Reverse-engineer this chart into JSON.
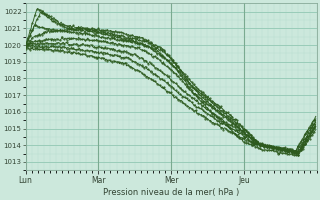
{
  "xlabel": "Pression niveau de la mer( hPa )",
  "bg_color": "#cce8dc",
  "plot_bg_color": "#cce8dc",
  "grid_major_color": "#99ccb8",
  "grid_minor_color": "#b8ddd0",
  "line_color": "#2d5a1e",
  "ylim": [
    1012.5,
    1022.5
  ],
  "yticks": [
    1013,
    1014,
    1015,
    1016,
    1017,
    1018,
    1019,
    1020,
    1021,
    1022
  ],
  "day_labels": [
    "Lun",
    "Mar",
    "Mer",
    "Jeu"
  ],
  "day_positions": [
    0,
    96,
    192,
    288
  ],
  "total_points": 384,
  "series": [
    {
      "points": [
        [
          0,
          1020.0
        ],
        [
          15,
          1022.2
        ],
        [
          30,
          1021.8
        ],
        [
          50,
          1021.2
        ],
        [
          80,
          1021.0
        ],
        [
          120,
          1020.8
        ],
        [
          150,
          1020.5
        ],
        [
          180,
          1019.8
        ],
        [
          200,
          1018.8
        ],
        [
          220,
          1017.5
        ],
        [
          240,
          1016.8
        ],
        [
          260,
          1016.0
        ],
        [
          288,
          1015.0
        ],
        [
          310,
          1014.0
        ],
        [
          340,
          1013.8
        ],
        [
          360,
          1013.6
        ],
        [
          384,
          1015.5
        ]
      ]
    },
    {
      "points": [
        [
          0,
          1020.0
        ],
        [
          20,
          1022.0
        ],
        [
          35,
          1021.5
        ],
        [
          55,
          1021.0
        ],
        [
          90,
          1020.8
        ],
        [
          130,
          1020.4
        ],
        [
          160,
          1020.0
        ],
        [
          190,
          1019.0
        ],
        [
          210,
          1018.0
        ],
        [
          230,
          1017.0
        ],
        [
          250,
          1016.2
        ],
        [
          270,
          1015.5
        ],
        [
          288,
          1014.8
        ],
        [
          310,
          1014.0
        ],
        [
          340,
          1013.7
        ],
        [
          360,
          1013.5
        ],
        [
          384,
          1015.2
        ]
      ]
    },
    {
      "points": [
        [
          0,
          1020.0
        ],
        [
          12,
          1021.2
        ],
        [
          25,
          1021.0
        ],
        [
          60,
          1020.8
        ],
        [
          100,
          1020.5
        ],
        [
          140,
          1020.2
        ],
        [
          170,
          1019.8
        ],
        [
          200,
          1018.5
        ],
        [
          220,
          1017.2
        ],
        [
          245,
          1016.0
        ],
        [
          270,
          1015.0
        ],
        [
          288,
          1014.2
        ],
        [
          310,
          1013.8
        ],
        [
          340,
          1013.5
        ],
        [
          360,
          1013.4
        ],
        [
          384,
          1015.0
        ]
      ]
    },
    {
      "points": [
        [
          0,
          1020.0
        ],
        [
          10,
          1020.5
        ],
        [
          30,
          1020.8
        ],
        [
          70,
          1021.0
        ],
        [
          100,
          1020.8
        ],
        [
          130,
          1020.5
        ],
        [
          160,
          1020.2
        ],
        [
          185,
          1019.5
        ],
        [
          205,
          1018.5
        ],
        [
          225,
          1017.5
        ],
        [
          250,
          1016.5
        ],
        [
          270,
          1015.8
        ],
        [
          288,
          1015.0
        ],
        [
          310,
          1014.0
        ],
        [
          340,
          1013.8
        ],
        [
          360,
          1013.6
        ],
        [
          384,
          1015.3
        ]
      ]
    },
    {
      "points": [
        [
          0,
          1020.0
        ],
        [
          8,
          1020.2
        ],
        [
          25,
          1020.3
        ],
        [
          60,
          1020.4
        ],
        [
          90,
          1020.3
        ],
        [
          120,
          1020.1
        ],
        [
          150,
          1019.8
        ],
        [
          175,
          1019.2
        ],
        [
          200,
          1018.2
        ],
        [
          220,
          1017.2
        ],
        [
          245,
          1016.3
        ],
        [
          268,
          1015.5
        ],
        [
          288,
          1014.8
        ],
        [
          310,
          1014.0
        ],
        [
          340,
          1013.8
        ],
        [
          360,
          1013.5
        ],
        [
          384,
          1015.2
        ]
      ]
    },
    {
      "points": [
        [
          0,
          1020.0
        ],
        [
          6,
          1020.1
        ],
        [
          20,
          1020.1
        ],
        [
          50,
          1020.1
        ],
        [
          80,
          1020.0
        ],
        [
          110,
          1019.8
        ],
        [
          140,
          1019.5
        ],
        [
          165,
          1018.9
        ],
        [
          190,
          1018.0
        ],
        [
          210,
          1017.2
        ],
        [
          235,
          1016.3
        ],
        [
          260,
          1015.5
        ],
        [
          285,
          1014.8
        ],
        [
          305,
          1014.1
        ],
        [
          335,
          1013.8
        ],
        [
          358,
          1013.6
        ],
        [
          384,
          1015.5
        ]
      ]
    },
    {
      "points": [
        [
          0,
          1019.9
        ],
        [
          4,
          1020.0
        ],
        [
          15,
          1019.9
        ],
        [
          45,
          1019.9
        ],
        [
          75,
          1019.7
        ],
        [
          105,
          1019.5
        ],
        [
          135,
          1019.2
        ],
        [
          160,
          1018.6
        ],
        [
          185,
          1017.8
        ],
        [
          205,
          1017.0
        ],
        [
          230,
          1016.2
        ],
        [
          255,
          1015.4
        ],
        [
          280,
          1014.8
        ],
        [
          302,
          1014.1
        ],
        [
          332,
          1013.8
        ],
        [
          356,
          1013.6
        ],
        [
          384,
          1015.7
        ]
      ]
    },
    {
      "points": [
        [
          0,
          1019.8
        ],
        [
          2,
          1019.8
        ],
        [
          12,
          1019.8
        ],
        [
          40,
          1019.7
        ],
        [
          70,
          1019.5
        ],
        [
          100,
          1019.2
        ],
        [
          130,
          1018.9
        ],
        [
          155,
          1018.3
        ],
        [
          180,
          1017.5
        ],
        [
          200,
          1016.8
        ],
        [
          225,
          1016.0
        ],
        [
          250,
          1015.3
        ],
        [
          275,
          1014.7
        ],
        [
          300,
          1014.1
        ],
        [
          330,
          1013.8
        ],
        [
          355,
          1013.6
        ],
        [
          384,
          1015.8
        ]
      ]
    }
  ]
}
